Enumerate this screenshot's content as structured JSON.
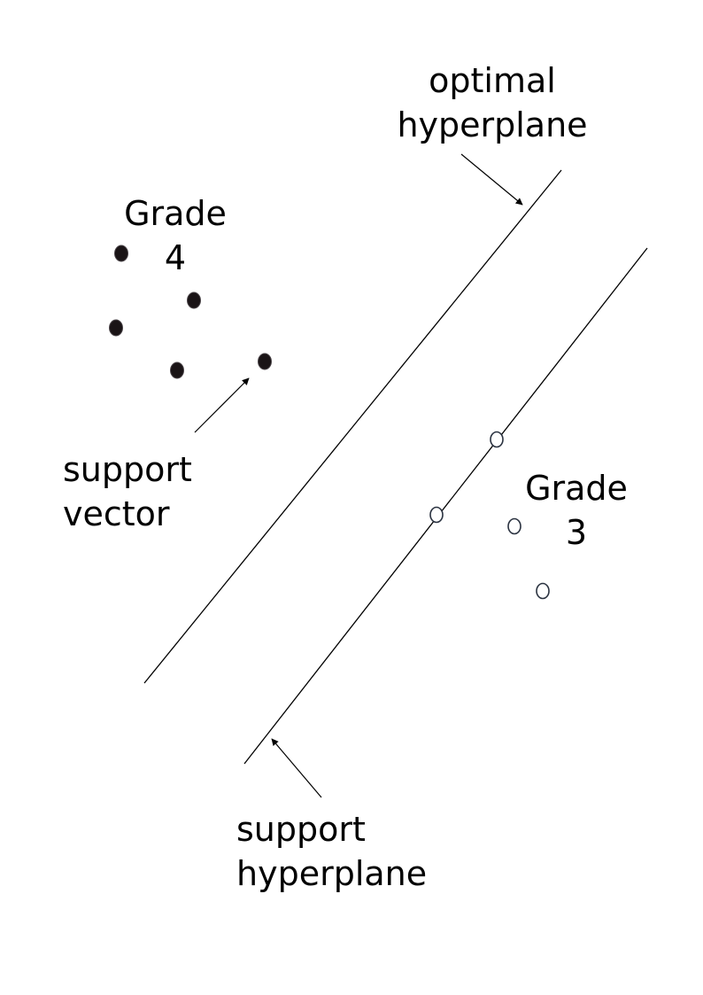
{
  "labels": {
    "optimal_hyperplane": [
      "optimal",
      "hyperplane"
    ],
    "grade_4": [
      "Grade",
      "4"
    ],
    "support_vector": [
      "support",
      "vector"
    ],
    "grade_3": [
      "Grade",
      "3"
    ],
    "support_hyperplane": [
      "support",
      "hyperplane"
    ]
  },
  "colors": {
    "line": "#000000",
    "grade_4_point": "#1a1416",
    "grade_3_point": "#2a3240"
  }
}
